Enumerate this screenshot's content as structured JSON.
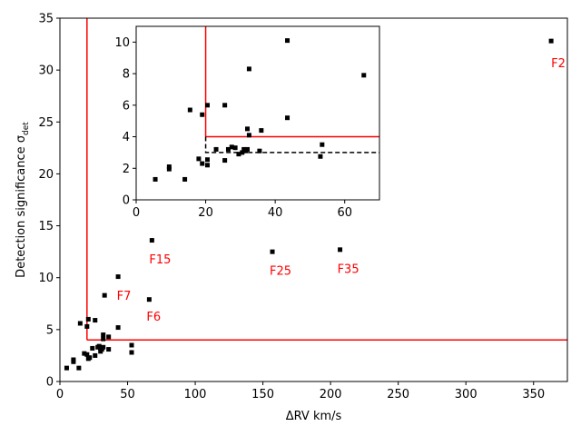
{
  "chart_data": [
    {
      "type": "scatter",
      "xlabel": "ΔRV km/s",
      "ylabel": "Detection significance σ",
      "ylabel_sub": "det",
      "xlim": [
        0,
        375
      ],
      "ylim": [
        0,
        35
      ],
      "xticks": [
        0,
        50,
        100,
        150,
        200,
        250,
        300,
        350
      ],
      "yticks": [
        0,
        5,
        10,
        15,
        20,
        25,
        30,
        35
      ],
      "threshold_lines": {
        "x": 20,
        "y": 4,
        "color": "#ff0000"
      },
      "series": [
        {
          "points": [
            [
              363,
              32.8
            ],
            [
              68,
              13.6
            ],
            [
              157,
              12.5
            ],
            [
              207,
              12.7
            ],
            [
              43,
              10.1
            ],
            [
              33,
              8.3
            ],
            [
              66,
              7.9
            ],
            [
              21,
              6.0
            ],
            [
              26,
              5.9
            ],
            [
              15,
              5.6
            ],
            [
              20,
              5.3
            ],
            [
              43,
              5.2
            ],
            [
              32,
              4.5
            ],
            [
              36,
              4.3
            ],
            [
              32,
              4.1
            ],
            [
              28,
              3.3
            ],
            [
              29,
              3.4
            ],
            [
              30,
              3.2
            ],
            [
              31,
              3.1
            ],
            [
              32,
              3.3
            ],
            [
              36,
              3.1
            ],
            [
              24,
              3.2
            ],
            [
              53,
              3.5
            ],
            [
              53,
              2.8
            ],
            [
              18,
              2.7
            ],
            [
              20,
              2.6
            ],
            [
              22,
              2.3
            ],
            [
              21,
              2.2
            ],
            [
              26,
              2.5
            ],
            [
              30,
              2.9
            ],
            [
              10,
              2.1
            ],
            [
              10,
              1.9
            ],
            [
              14,
              1.3
            ],
            [
              5,
              1.3
            ]
          ]
        }
      ],
      "annotations": [
        {
          "text": "F2",
          "x": 363,
          "y": 30.7
        },
        {
          "text": "F15",
          "x": 66,
          "y": 11.8
        },
        {
          "text": "F25",
          "x": 155,
          "y": 10.7
        },
        {
          "text": "F35",
          "x": 205,
          "y": 10.9
        },
        {
          "text": "F7",
          "x": 42,
          "y": 8.3
        },
        {
          "text": "F6",
          "x": 64,
          "y": 6.3
        }
      ]
    },
    {
      "type": "scatter",
      "inset": true,
      "xlim": [
        0,
        70
      ],
      "ylim": [
        0,
        11
      ],
      "xticks": [
        0,
        20,
        40,
        60
      ],
      "yticks": [
        0,
        2,
        4,
        6,
        8,
        10
      ],
      "threshold_lines": {
        "x": 20,
        "y": 4,
        "color": "#ff0000"
      },
      "dashed_threshold": {
        "x": 20,
        "y": 3,
        "color": "#000000"
      },
      "series": [
        {
          "points": [
            [
              5.5,
              1.3
            ],
            [
              9.5,
              2.1
            ],
            [
              9.5,
              1.95
            ],
            [
              14,
              1.3
            ],
            [
              15.5,
              5.7
            ],
            [
              18,
              2.6
            ],
            [
              19,
              2.3
            ],
            [
              19,
              5.4
            ],
            [
              20.5,
              6.0
            ],
            [
              20.5,
              2.55
            ],
            [
              20.5,
              2.2
            ],
            [
              23,
              3.2
            ],
            [
              25.5,
              2.5
            ],
            [
              25.5,
              6.0
            ],
            [
              26.5,
              3.2
            ],
            [
              27.5,
              3.35
            ],
            [
              28.5,
              3.3
            ],
            [
              29.5,
              2.9
            ],
            [
              30.5,
              3.0
            ],
            [
              31,
              3.2
            ],
            [
              31.5,
              3.1
            ],
            [
              32,
              3.2
            ],
            [
              32,
              4.5
            ],
            [
              32.5,
              4.1
            ],
            [
              32.5,
              8.3
            ],
            [
              35.5,
              3.1
            ],
            [
              36,
              4.4
            ],
            [
              43.5,
              10.1
            ],
            [
              43.5,
              5.2
            ],
            [
              53,
              2.75
            ],
            [
              53.5,
              3.5
            ],
            [
              65.5,
              7.9
            ]
          ]
        }
      ]
    }
  ]
}
